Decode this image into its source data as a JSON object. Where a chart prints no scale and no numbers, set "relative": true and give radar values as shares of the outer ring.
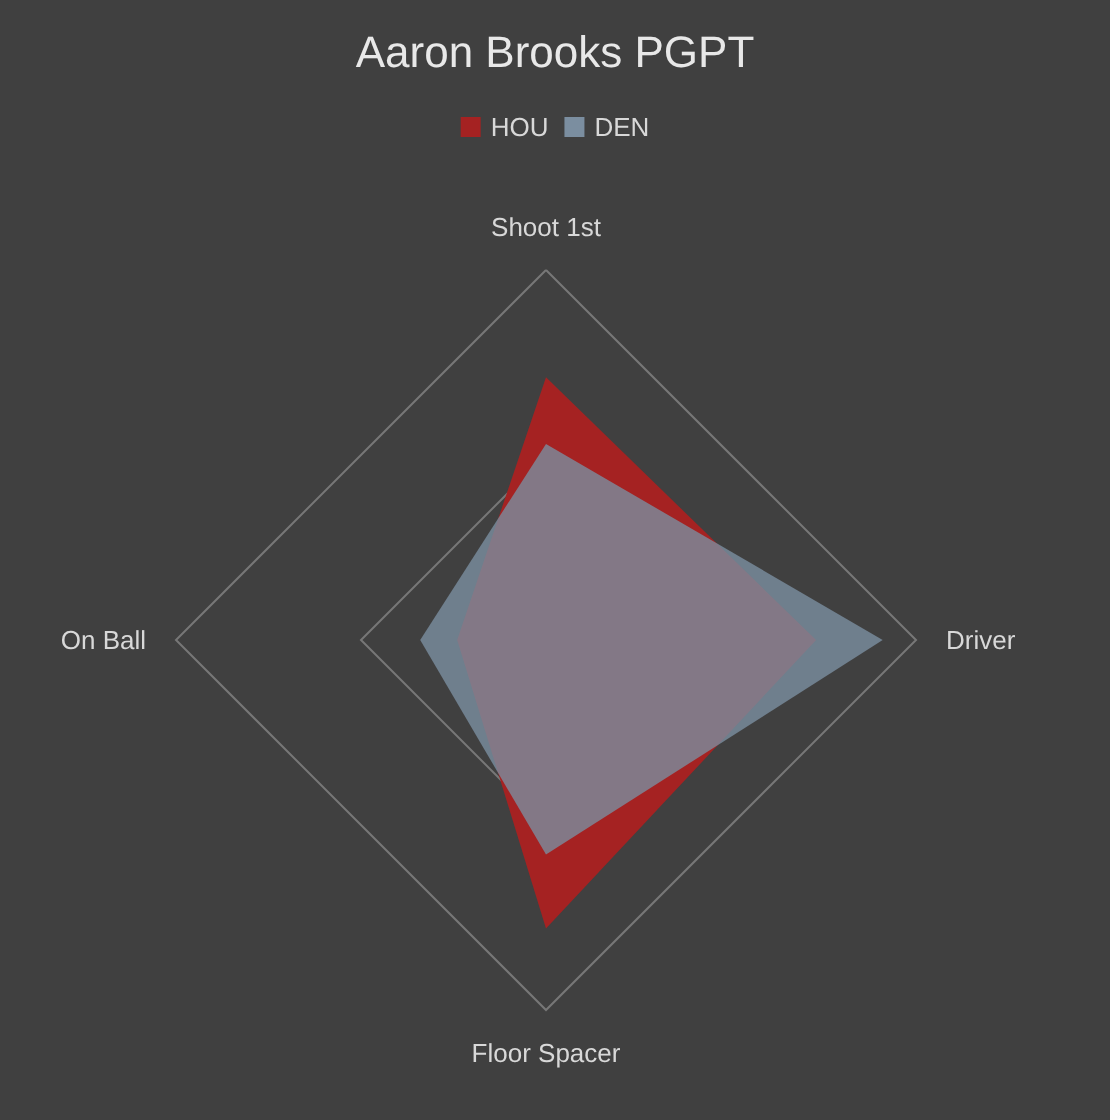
{
  "chart_data": {
    "type": "radar",
    "title": "Aaron Brooks PGPT",
    "relative": true,
    "legend": "top",
    "categories": [
      "Shoot 1st",
      "Driver",
      "Floor Spacer",
      "On Ball"
    ],
    "series": [
      {
        "name": "HOU",
        "color": "#a52222",
        "values": [
          0.71,
          0.73,
          0.78,
          0.24
        ]
      },
      {
        "name": "DEN",
        "color": "#7b8ea0",
        "values": [
          0.53,
          0.91,
          0.58,
          0.34
        ]
      }
    ]
  }
}
